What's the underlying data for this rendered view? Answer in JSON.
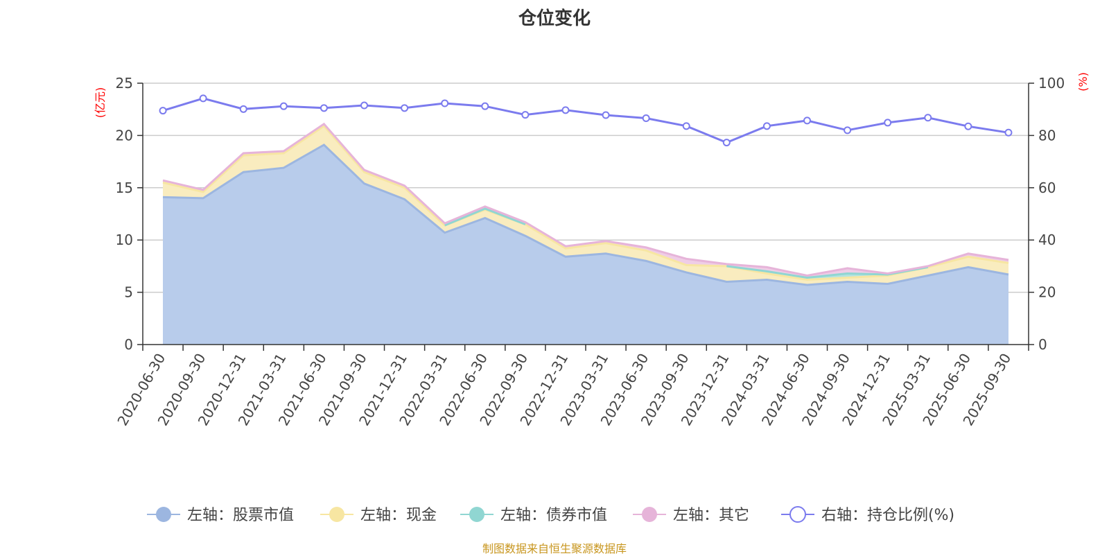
{
  "chart_data": {
    "type": "area",
    "title": "仓位变化",
    "left_axis": {
      "unit_label": "(亿元)",
      "ylim": [
        0,
        25
      ],
      "ticks": [
        0,
        5,
        10,
        15,
        20,
        25
      ]
    },
    "right_axis": {
      "unit_label": "(%)",
      "ylim": [
        0,
        100
      ],
      "ticks": [
        0,
        20,
        40,
        60,
        80,
        100
      ]
    },
    "categories": [
      "2020-06-30",
      "2020-09-30",
      "2020-12-31",
      "2021-03-31",
      "2021-06-30",
      "2021-09-30",
      "2021-12-31",
      "2022-03-31",
      "2022-06-30",
      "2022-09-30",
      "2022-12-31",
      "2023-03-31",
      "2023-06-30",
      "2023-09-30",
      "2023-12-31",
      "2024-03-31",
      "2024-06-30",
      "2024-09-30",
      "2024-12-31",
      "2025-03-31",
      "2025-06-30",
      "2025-09-30"
    ],
    "series": [
      {
        "name": "左轴：股票市值",
        "axis": "left",
        "stack": true,
        "color": "#9cb6e0",
        "fill": "#b8cceb",
        "values": [
          14.1,
          14.0,
          16.5,
          16.9,
          19.1,
          15.4,
          13.9,
          10.7,
          12.1,
          10.4,
          8.4,
          8.7,
          8.0,
          6.9,
          6.0,
          6.2,
          5.7,
          6.0,
          5.8,
          6.6,
          7.4,
          6.7
        ]
      },
      {
        "name": "左轴：现金",
        "axis": "left",
        "stack": true,
        "color": "#f7e6a2",
        "fill": "#f9ecbf",
        "values": [
          1.4,
          0.6,
          1.6,
          1.4,
          1.8,
          1.1,
          1.1,
          0.7,
          0.8,
          1.1,
          0.8,
          1.0,
          1.0,
          0.7,
          1.5,
          0.6,
          0.5,
          0.4,
          0.8,
          0.8,
          1.0,
          1.1
        ]
      },
      {
        "name": "左轴：债券市值",
        "axis": "left",
        "stack": true,
        "color": "#90d6d2",
        "fill": "#b3e3e0",
        "values": [
          0,
          0,
          0,
          0,
          0,
          0,
          0,
          0,
          0.1,
          0,
          0,
          0,
          0,
          0,
          0,
          0.2,
          0.2,
          0.4,
          0.1,
          0,
          0,
          0
        ]
      },
      {
        "name": "左轴：其它",
        "axis": "left",
        "stack": true,
        "color": "#e6b4d9",
        "fill": "#efcde6",
        "values": [
          0.2,
          0.2,
          0.2,
          0.2,
          0.2,
          0.2,
          0.2,
          0.2,
          0.2,
          0.2,
          0.2,
          0.2,
          0.3,
          0.6,
          0.2,
          0.4,
          0.2,
          0.5,
          0.1,
          0.1,
          0.3,
          0.3
        ]
      },
      {
        "name": "右轴：持仓比例(%)",
        "axis": "right",
        "stack": false,
        "color": "#7b7bee",
        "values": [
          89.5,
          94.2,
          90.1,
          91.2,
          90.5,
          91.5,
          90.5,
          92.3,
          91.2,
          87.9,
          89.7,
          87.8,
          86.6,
          83.6,
          77.3,
          83.6,
          85.7,
          82.0,
          84.9,
          86.8,
          83.5,
          81.1
        ]
      }
    ]
  },
  "footer": "制图数据来自恒生聚源数据库"
}
